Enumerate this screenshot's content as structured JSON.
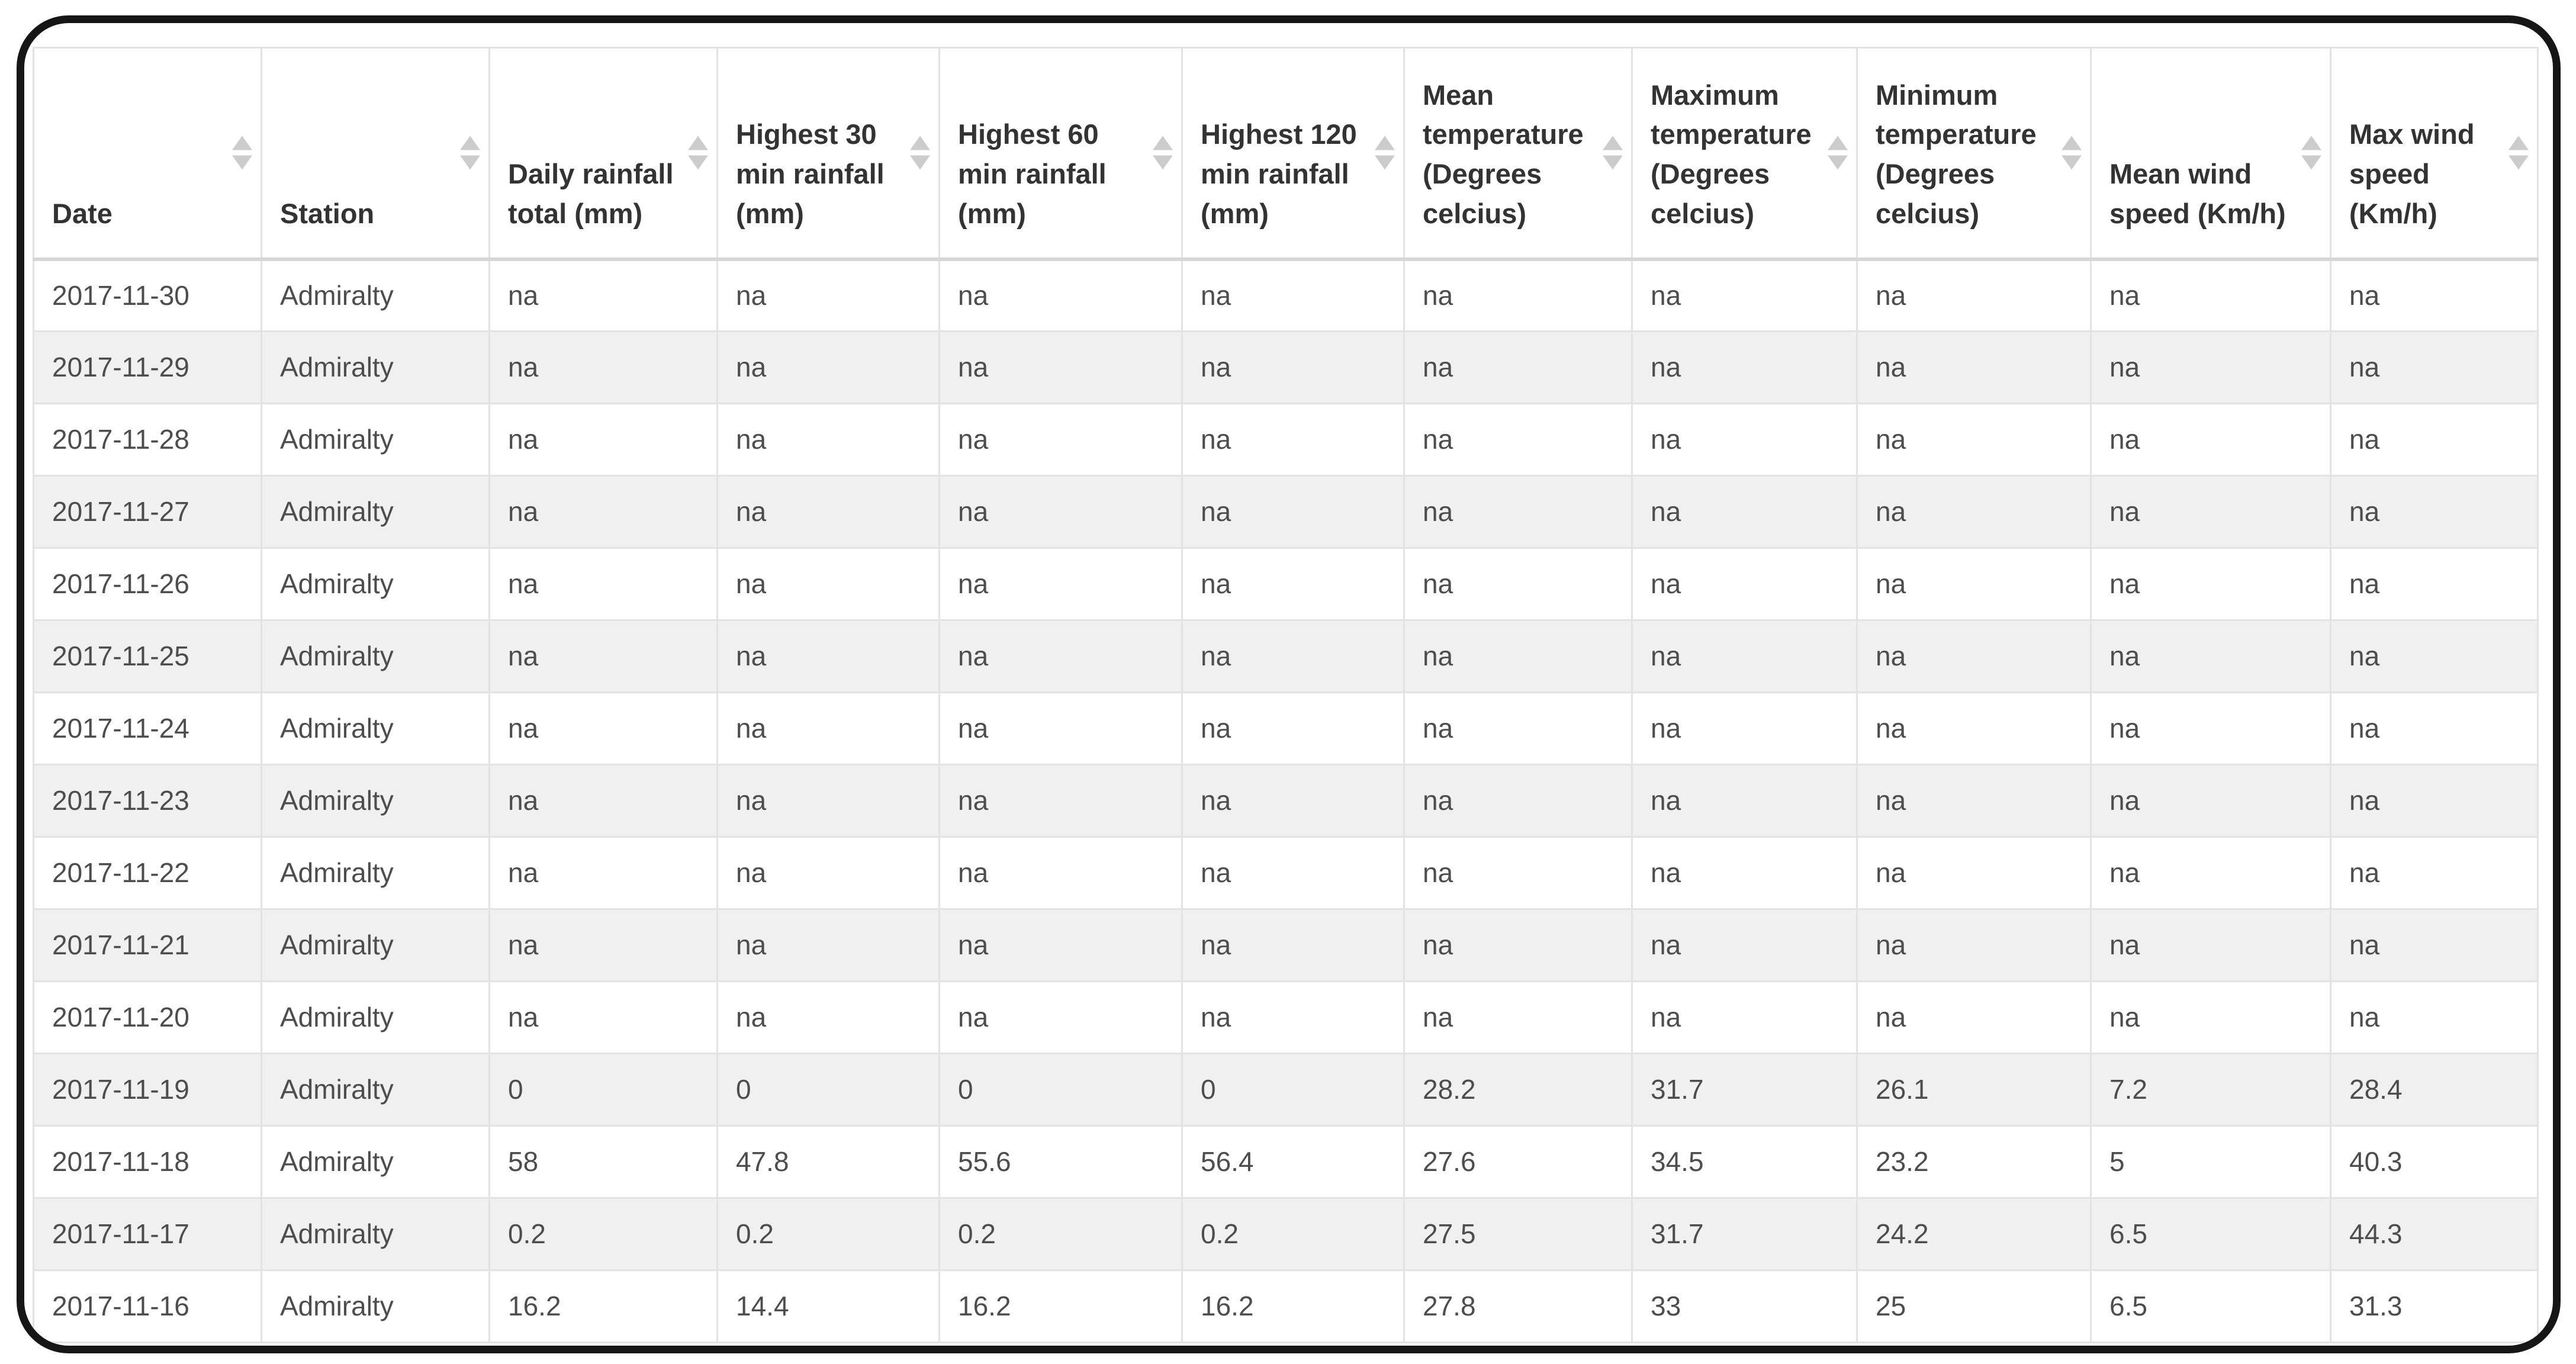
{
  "colors": {
    "frame_border": "#161616",
    "table_border": "#e3e3e3",
    "header_border_bottom": "#d6d6d6",
    "stripe_row": "#f0f0f0",
    "header_text": "#333333",
    "cell_text": "#4d4d4d",
    "sort_icon": "#cccccc"
  },
  "table": {
    "columns": [
      {
        "key": "date",
        "label": "Date"
      },
      {
        "key": "station",
        "label": "Station"
      },
      {
        "key": "daily-rainfall-total",
        "label": "Daily rainfall total (mm)"
      },
      {
        "key": "highest-30-min-rainfall",
        "label": "Highest 30 min rainfall (mm)"
      },
      {
        "key": "highest-60-min-rainfall",
        "label": "Highest 60 min rainfall (mm)"
      },
      {
        "key": "highest-120-min-rainfall",
        "label": "Highest 120 min rainfall (mm)"
      },
      {
        "key": "mean-temperature",
        "label": "Mean temperature (Degrees celcius)"
      },
      {
        "key": "maximum-temperature",
        "label": "Maximum temperature (Degrees celcius)"
      },
      {
        "key": "minimum-temperature",
        "label": "Minimum temperature (Degrees celcius)"
      },
      {
        "key": "mean-wind-speed",
        "label": "Mean wind speed (Km/h)"
      },
      {
        "key": "max-wind-speed",
        "label": "Max wind speed (Km/h)"
      }
    ],
    "rows": [
      {
        "cells": [
          "2017-11-30",
          "Admiralty",
          "na",
          "na",
          "na",
          "na",
          "na",
          "na",
          "na",
          "na",
          "na"
        ]
      },
      {
        "cells": [
          "2017-11-29",
          "Admiralty",
          "na",
          "na",
          "na",
          "na",
          "na",
          "na",
          "na",
          "na",
          "na"
        ]
      },
      {
        "cells": [
          "2017-11-28",
          "Admiralty",
          "na",
          "na",
          "na",
          "na",
          "na",
          "na",
          "na",
          "na",
          "na"
        ]
      },
      {
        "cells": [
          "2017-11-27",
          "Admiralty",
          "na",
          "na",
          "na",
          "na",
          "na",
          "na",
          "na",
          "na",
          "na"
        ]
      },
      {
        "cells": [
          "2017-11-26",
          "Admiralty",
          "na",
          "na",
          "na",
          "na",
          "na",
          "na",
          "na",
          "na",
          "na"
        ]
      },
      {
        "cells": [
          "2017-11-25",
          "Admiralty",
          "na",
          "na",
          "na",
          "na",
          "na",
          "na",
          "na",
          "na",
          "na"
        ]
      },
      {
        "cells": [
          "2017-11-24",
          "Admiralty",
          "na",
          "na",
          "na",
          "na",
          "na",
          "na",
          "na",
          "na",
          "na"
        ]
      },
      {
        "cells": [
          "2017-11-23",
          "Admiralty",
          "na",
          "na",
          "na",
          "na",
          "na",
          "na",
          "na",
          "na",
          "na"
        ]
      },
      {
        "cells": [
          "2017-11-22",
          "Admiralty",
          "na",
          "na",
          "na",
          "na",
          "na",
          "na",
          "na",
          "na",
          "na"
        ]
      },
      {
        "cells": [
          "2017-11-21",
          "Admiralty",
          "na",
          "na",
          "na",
          "na",
          "na",
          "na",
          "na",
          "na",
          "na"
        ]
      },
      {
        "cells": [
          "2017-11-20",
          "Admiralty",
          "na",
          "na",
          "na",
          "na",
          "na",
          "na",
          "na",
          "na",
          "na"
        ]
      },
      {
        "cells": [
          "2017-11-19",
          "Admiralty",
          "0",
          "0",
          "0",
          "0",
          "28.2",
          "31.7",
          "26.1",
          "7.2",
          "28.4"
        ]
      },
      {
        "cells": [
          "2017-11-18",
          "Admiralty",
          "58",
          "47.8",
          "55.6",
          "56.4",
          "27.6",
          "34.5",
          "23.2",
          "5",
          "40.3"
        ]
      },
      {
        "cells": [
          "2017-11-17",
          "Admiralty",
          "0.2",
          "0.2",
          "0.2",
          "0.2",
          "27.5",
          "31.7",
          "24.2",
          "6.5",
          "44.3"
        ]
      },
      {
        "cells": [
          "2017-11-16",
          "Admiralty",
          "16.2",
          "14.4",
          "16.2",
          "16.2",
          "27.8",
          "33",
          "25",
          "6.5",
          "31.3"
        ]
      }
    ]
  }
}
